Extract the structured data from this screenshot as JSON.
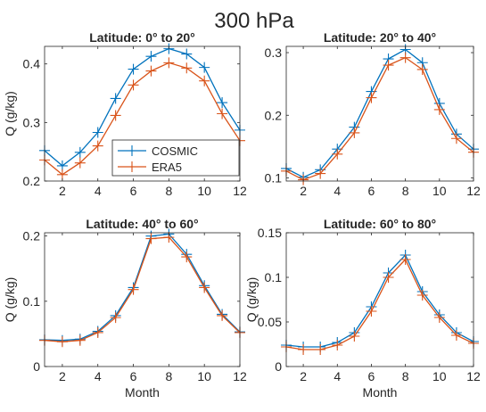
{
  "figure": {
    "suptitle": "300 hPa"
  },
  "colors": {
    "cosmic": "#0072BD",
    "era5": "#D95319",
    "axis": "#262626"
  },
  "chart_data": [
    {
      "type": "line",
      "title": "Latitude: 0° to 20°",
      "xlabel": "",
      "ylabel": "Q (g/kg)",
      "x": [
        1,
        2,
        3,
        4,
        5,
        6,
        7,
        8,
        9,
        10,
        11,
        12
      ],
      "xlim": [
        1,
        12
      ],
      "ylim": [
        0.2,
        0.43
      ],
      "xticks": [
        2,
        4,
        6,
        8,
        10,
        12
      ],
      "xticklabels": [
        "2",
        "4",
        "6",
        "8",
        "10",
        "12"
      ],
      "yticks": [
        0.2,
        0.3,
        0.4
      ],
      "yticklabels": [
        "0.2",
        "0.3",
        "0.4"
      ],
      "legend": {
        "placement": "bottom-center",
        "entries": [
          "COSMIC",
          "ERA5"
        ]
      },
      "series": [
        {
          "name": "COSMIC",
          "values": [
            0.252,
            0.226,
            0.249,
            0.283,
            0.341,
            0.391,
            0.413,
            0.426,
            0.417,
            0.394,
            0.334,
            0.287
          ]
        },
        {
          "name": "ERA5",
          "values": [
            0.236,
            0.211,
            0.231,
            0.26,
            0.312,
            0.364,
            0.388,
            0.402,
            0.393,
            0.371,
            0.315,
            0.269
          ]
        }
      ]
    },
    {
      "type": "line",
      "title": "Latitude: 20° to 40°",
      "xlabel": "",
      "ylabel": "",
      "x": [
        1,
        2,
        3,
        4,
        5,
        6,
        7,
        8,
        9,
        10,
        11,
        12
      ],
      "xlim": [
        1,
        12
      ],
      "ylim": [
        0.095,
        0.31
      ],
      "xticks": [
        2,
        4,
        6,
        8,
        10,
        12
      ],
      "xticklabels": [
        "2",
        "4",
        "6",
        "8",
        "10",
        "12"
      ],
      "yticks": [
        0.1,
        0.2,
        0.3
      ],
      "yticklabels": [
        "0.1",
        "0.2",
        "0.3"
      ],
      "series": [
        {
          "name": "COSMIC",
          "values": [
            0.115,
            0.101,
            0.113,
            0.146,
            0.181,
            0.238,
            0.29,
            0.305,
            0.284,
            0.219,
            0.17,
            0.146
          ]
        },
        {
          "name": "ERA5",
          "values": [
            0.111,
            0.097,
            0.107,
            0.138,
            0.172,
            0.228,
            0.28,
            0.292,
            0.273,
            0.209,
            0.163,
            0.141
          ]
        }
      ]
    },
    {
      "type": "line",
      "title": "Latitude: 40° to 60°",
      "xlabel": "Month",
      "ylabel": "Q (g/kg)",
      "x": [
        1,
        2,
        3,
        4,
        5,
        6,
        7,
        8,
        9,
        10,
        11,
        12
      ],
      "xlim": [
        1,
        12
      ],
      "ylim": [
        0,
        0.205
      ],
      "xticks": [
        2,
        4,
        6,
        8,
        10,
        12
      ],
      "xticklabels": [
        "2",
        "4",
        "6",
        "8",
        "10",
        "12"
      ],
      "yticks": [
        0,
        0.1,
        0.2
      ],
      "yticklabels": [
        "0",
        "0.1",
        "0.2"
      ],
      "series": [
        {
          "name": "COSMIC",
          "values": [
            0.041,
            0.04,
            0.042,
            0.054,
            0.078,
            0.121,
            0.2,
            0.203,
            0.172,
            0.124,
            0.08,
            0.053
          ]
        },
        {
          "name": "ERA5",
          "values": [
            0.04,
            0.038,
            0.04,
            0.052,
            0.075,
            0.118,
            0.196,
            0.198,
            0.168,
            0.121,
            0.078,
            0.052
          ]
        }
      ]
    },
    {
      "type": "line",
      "title": "Latitude: 60° to 80°",
      "xlabel": "Month",
      "ylabel": "Q (g/kg)",
      "x": [
        1,
        2,
        3,
        4,
        5,
        6,
        7,
        8,
        9,
        10,
        11,
        12
      ],
      "xlim": [
        1,
        12
      ],
      "ylim": [
        0,
        0.15
      ],
      "xticks": [
        2,
        4,
        6,
        8,
        10,
        12
      ],
      "xticklabels": [
        "2",
        "4",
        "6",
        "8",
        "10",
        "12"
      ],
      "yticks": [
        0,
        0.05,
        0.1,
        0.15
      ],
      "yticklabels": [
        "0",
        "0.05",
        "0.1",
        "0.15"
      ],
      "series": [
        {
          "name": "COSMIC",
          "values": [
            0.024,
            0.022,
            0.022,
            0.027,
            0.038,
            0.067,
            0.105,
            0.125,
            0.084,
            0.058,
            0.038,
            0.028
          ]
        },
        {
          "name": "ERA5",
          "values": [
            0.022,
            0.019,
            0.019,
            0.024,
            0.034,
            0.062,
            0.1,
            0.12,
            0.08,
            0.055,
            0.035,
            0.026
          ]
        }
      ]
    }
  ]
}
